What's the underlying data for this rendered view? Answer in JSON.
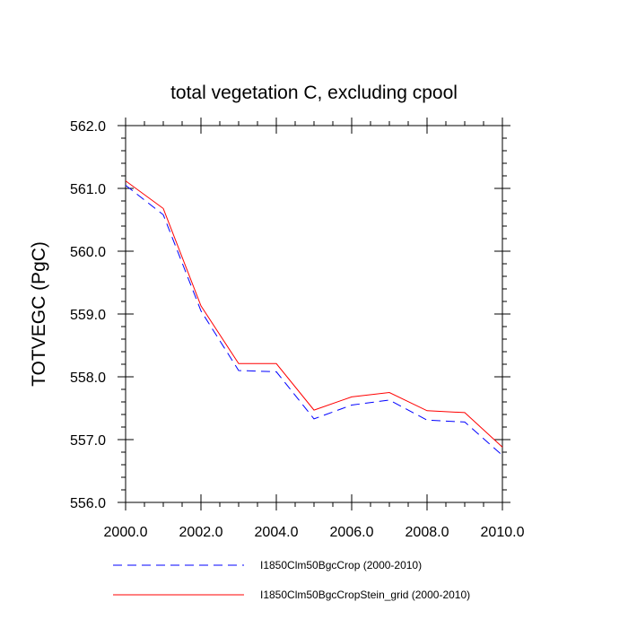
{
  "chart_data": {
    "type": "line",
    "title": "total vegetation C, excluding cpool",
    "xlabel": "",
    "ylabel": "TOTVEGC  (PgC)",
    "xlim": [
      2000.0,
      2010.0
    ],
    "ylim": [
      556.0,
      562.0
    ],
    "x_ticks": [
      "2000.0",
      "2002.0",
      "2004.0",
      "2006.0",
      "2008.0",
      "2010.0"
    ],
    "y_ticks": [
      "556.0",
      "557.0",
      "558.0",
      "559.0",
      "560.0",
      "561.0",
      "562.0"
    ],
    "x": [
      2000,
      2001,
      2002,
      2003,
      2004,
      2005,
      2006,
      2007,
      2008,
      2009,
      2010
    ],
    "series": [
      {
        "name": "I1850Clm50BgcCrop (2000-2010)",
        "color": "#0000ff",
        "style": "dashed",
        "values": [
          561.05,
          560.58,
          559.05,
          558.1,
          558.08,
          557.33,
          557.55,
          557.63,
          557.31,
          557.28,
          556.75
        ]
      },
      {
        "name": "I1850Clm50BgcCropStein_grid (2000-2010)",
        "color": "#ff0000",
        "style": "solid",
        "values": [
          561.12,
          560.68,
          559.13,
          558.21,
          558.21,
          557.47,
          557.68,
          557.75,
          557.46,
          557.43,
          556.88
        ]
      }
    ],
    "grid": false,
    "legend_position": "bottom"
  }
}
